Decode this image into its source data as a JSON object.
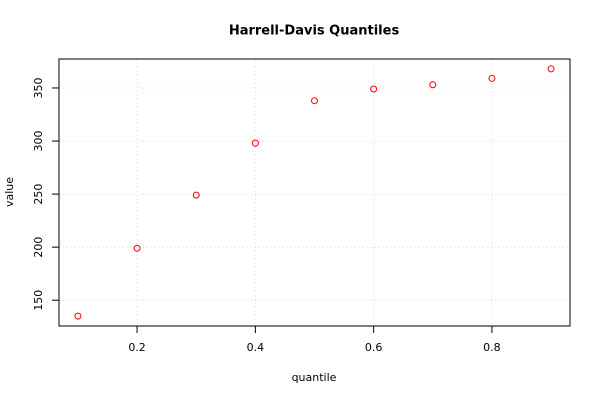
{
  "chart_data": {
    "type": "scatter",
    "title": "Harrell-Davis Quantiles",
    "x_label": "quantile",
    "y_label": "value",
    "x": [
      0.1,
      0.2,
      0.3,
      0.4,
      0.5,
      0.6,
      0.7,
      0.8,
      0.9
    ],
    "series": [
      {
        "color": "#ff0000",
        "values": [
          135,
          199,
          249,
          298,
          338,
          349,
          353,
          359,
          368
        ]
      }
    ],
    "xlim": [
      0.068,
      0.932
    ],
    "ylim": [
      125.7,
      377.3
    ],
    "xticks": [
      0.2,
      0.4,
      0.6,
      0.8
    ],
    "yticks": [
      150,
      200,
      250,
      300,
      350
    ],
    "grid": true
  }
}
